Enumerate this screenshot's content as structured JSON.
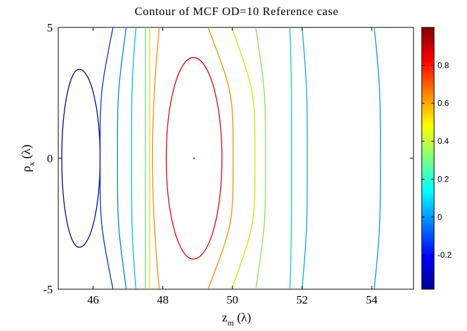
{
  "chart_data": {
    "type": "contour",
    "title": "Contour of MCF OD=10 Reference case",
    "xlabel": {
      "main": "z",
      "sub": "m",
      "unit": " (λ)"
    },
    "ylabel": {
      "main": "ρ",
      "sub": "x",
      "unit": " (λ)"
    },
    "xlim": [
      45,
      55.2
    ],
    "ylim": [
      -5,
      5
    ],
    "x_ticks": [
      {
        "value": 46,
        "label": "46"
      },
      {
        "value": 48,
        "label": "48"
      },
      {
        "value": 50,
        "label": "50"
      },
      {
        "value": 52,
        "label": "52"
      },
      {
        "value": 54,
        "label": "54"
      }
    ],
    "y_ticks": [
      {
        "value": -5,
        "label": "-5"
      },
      {
        "value": 0,
        "label": "0"
      },
      {
        "value": 5,
        "label": "5"
      }
    ],
    "colorbar": {
      "range": [
        -0.38,
        1.0
      ],
      "colormap": "jet",
      "ticks": [
        {
          "value": -0.2,
          "label": "-0.2"
        },
        {
          "value": 0,
          "label": "0"
        },
        {
          "value": 0.2,
          "label": "0.2"
        },
        {
          "value": 0.4,
          "label": "0.4"
        },
        {
          "value": 0.6,
          "label": "0.6"
        },
        {
          "value": 0.8,
          "label": "0.8"
        }
      ]
    },
    "peak": {
      "x": 48.9,
      "y": 0,
      "color": "#cc0000"
    },
    "contours": [
      {
        "shape": "ellipse",
        "color": "#000099",
        "cx": 45.6,
        "ry": 3.4,
        "x_min": 45.1,
        "x_max": 46.2
      },
      {
        "shape": "arc",
        "color": "#0033cc",
        "x_center": 46.2,
        "x_edge": 46.57,
        "peak_frac": 0.25
      },
      {
        "shape": "arc",
        "color": "#0077ff",
        "x_center": 46.7,
        "x_edge": 46.95,
        "peak_frac": 0.25
      },
      {
        "shape": "arc",
        "color": "#00bbee",
        "x_center": 47.1,
        "x_edge": 47.23,
        "peak_frac": 0.2
      },
      {
        "shape": "vline",
        "color": "#66dd99",
        "x": 47.5
      },
      {
        "shape": "vline",
        "color": "#dddd00",
        "x": 47.62
      },
      {
        "shape": "ellipse_open",
        "color": "#ff8800",
        "cx": 48.95,
        "rx_frac": 0.31,
        "x_left": 47.9,
        "x_right_edge": 49.3,
        "x_right_center": 50.02
      },
      {
        "shape": "ellipse",
        "color": "#dd0000",
        "cx": 48.88,
        "ry": 3.85,
        "x_min": 48.1,
        "x_max": 49.7
      },
      {
        "shape": "arc",
        "color": "#dddd00",
        "x_center": 50.65,
        "x_edge": 49.98,
        "peak_frac": 0.25
      },
      {
        "shape": "arc",
        "color": "#88dd55",
        "x_center": 50.95,
        "x_edge": 50.67,
        "peak_frac": 0.25
      },
      {
        "shape": "arc",
        "color": "#00cccc",
        "x_center": 51.7,
        "x_edge": 51.65,
        "peak_frac": 0.2
      },
      {
        "shape": "arc",
        "color": "#00aadd",
        "x_center": 52.15,
        "x_edge": 52.0,
        "peak_frac": 0.22
      },
      {
        "shape": "arc",
        "color": "#0099ee",
        "x_center": 54.25,
        "x_edge": 54.07,
        "peak_frac": 0.22
      }
    ]
  }
}
